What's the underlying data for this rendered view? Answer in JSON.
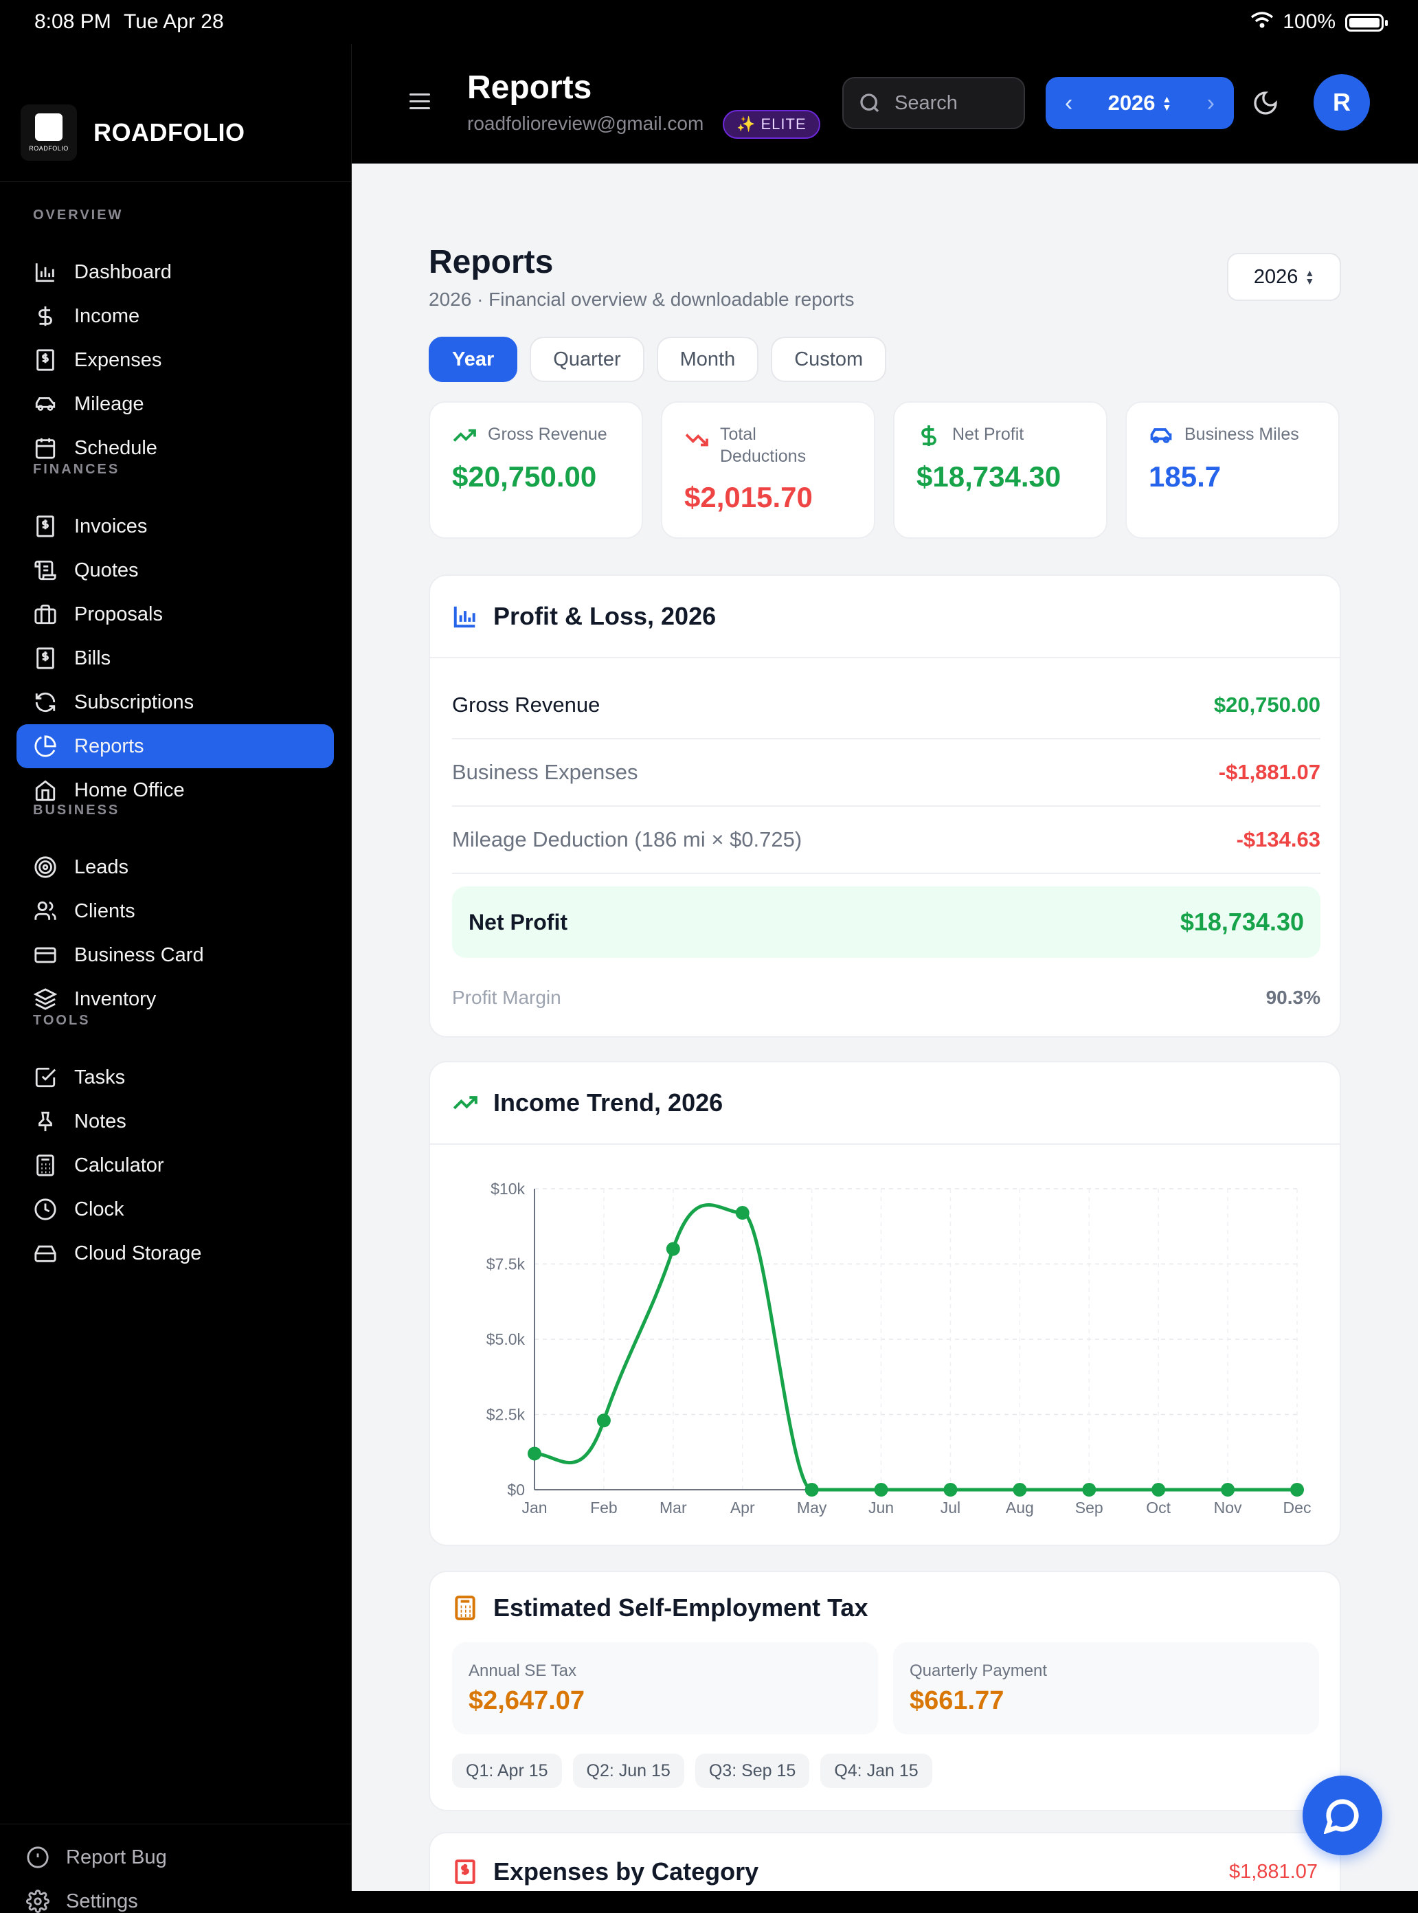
{
  "status": {
    "time": "8:08 PM",
    "date": "Tue Apr 28",
    "battery": "100%"
  },
  "brand": {
    "name": "ROADFOLIO",
    "logo_text": "ROADFOLIO"
  },
  "sidebar": {
    "sections": {
      "overview": "OVERVIEW",
      "finances": "FINANCES",
      "business": "BUSINESS",
      "tools": "TOOLS"
    },
    "items": [
      {
        "label": "Dashboard",
        "icon": "bar-chart-icon"
      },
      {
        "label": "Income",
        "icon": "dollar-icon"
      },
      {
        "label": "Expenses",
        "icon": "receipt-icon"
      },
      {
        "label": "Mileage",
        "icon": "car-icon"
      },
      {
        "label": "Schedule",
        "icon": "calendar-icon"
      },
      {
        "label": "Invoices",
        "icon": "invoice-icon"
      },
      {
        "label": "Quotes",
        "icon": "scroll-icon"
      },
      {
        "label": "Proposals",
        "icon": "briefcase-icon"
      },
      {
        "label": "Bills",
        "icon": "bill-icon"
      },
      {
        "label": "Subscriptions",
        "icon": "refresh-icon"
      },
      {
        "label": "Reports",
        "icon": "pie-chart-icon"
      },
      {
        "label": "Home Office",
        "icon": "home-icon"
      },
      {
        "label": "Leads",
        "icon": "target-icon"
      },
      {
        "label": "Clients",
        "icon": "users-icon"
      },
      {
        "label": "Business Card",
        "icon": "card-icon"
      },
      {
        "label": "Inventory",
        "icon": "layers-icon"
      },
      {
        "label": "Tasks",
        "icon": "checkbox-icon"
      },
      {
        "label": "Notes",
        "icon": "pin-icon"
      },
      {
        "label": "Calculator",
        "icon": "calculator-icon"
      },
      {
        "label": "Clock",
        "icon": "clock-icon"
      },
      {
        "label": "Cloud Storage",
        "icon": "drive-icon"
      }
    ],
    "bottom": {
      "report_bug": "Report Bug",
      "settings": "Settings"
    }
  },
  "header": {
    "title": "Reports",
    "email": "roadfolioreview@gmail.com",
    "badge": "✨ ELITE",
    "search_placeholder": "Search",
    "year": "2026",
    "avatar": "R"
  },
  "page": {
    "title": "Reports",
    "subtitle": "2026 · Financial overview & downloadable reports",
    "year_select": "2026",
    "tabs": [
      "Year",
      "Quarter",
      "Month",
      "Custom"
    ]
  },
  "stats": [
    {
      "label": "Gross Revenue",
      "value": "$20,750.00",
      "color": "#16a34a"
    },
    {
      "label": "Total Deductions",
      "value": "$2,015.70",
      "color": "#ef4444"
    },
    {
      "label": "Net Profit",
      "value": "$18,734.30",
      "color": "#16a34a"
    },
    {
      "label": "Business Miles",
      "value": "185.7",
      "color": "#2563eb"
    }
  ],
  "profit_loss": {
    "title": "Profit & Loss, 2026",
    "gross_revenue_label": "Gross Revenue",
    "gross_revenue": "$20,750.00",
    "business_expenses_label": "Business Expenses",
    "business_expenses": "-$1,881.07",
    "mileage_label": "Mileage Deduction (186 mi × $0.725)",
    "mileage": "-$134.63",
    "net_profit_label": "Net Profit",
    "net_profit": "$18,734.30",
    "margin_label": "Profit Margin",
    "margin": "90.3%"
  },
  "income_trend": {
    "title": "Income Trend, 2026"
  },
  "chart_data": {
    "type": "line",
    "title": "Income Trend, 2026",
    "categories": [
      "Jan",
      "Feb",
      "Mar",
      "Apr",
      "May",
      "Jun",
      "Jul",
      "Aug",
      "Sep",
      "Oct",
      "Nov",
      "Dec"
    ],
    "values": [
      1200,
      2300,
      8000,
      9200,
      0,
      0,
      0,
      0,
      0,
      0,
      0,
      0
    ],
    "ylim": [
      0,
      10000
    ],
    "yticks": [
      "$0",
      "$2.5k",
      "$5.0k",
      "$7.5k",
      "$10k"
    ],
    "ytick_values": [
      0,
      2500,
      5000,
      7500,
      10000
    ],
    "color": "#16a34a",
    "grid": true
  },
  "se_tax": {
    "title": "Estimated Self-Employment Tax",
    "annual_label": "Annual SE Tax",
    "annual": "$2,647.07",
    "quarterly_label": "Quarterly Payment",
    "quarterly": "$661.77",
    "due_dates": [
      "Q1: Apr 15",
      "Q2: Jun 15",
      "Q3: Sep 15",
      "Q4: Jan 15"
    ]
  },
  "expenses_by_category": {
    "title": "Expenses by Category",
    "total": "$1,881.07"
  }
}
